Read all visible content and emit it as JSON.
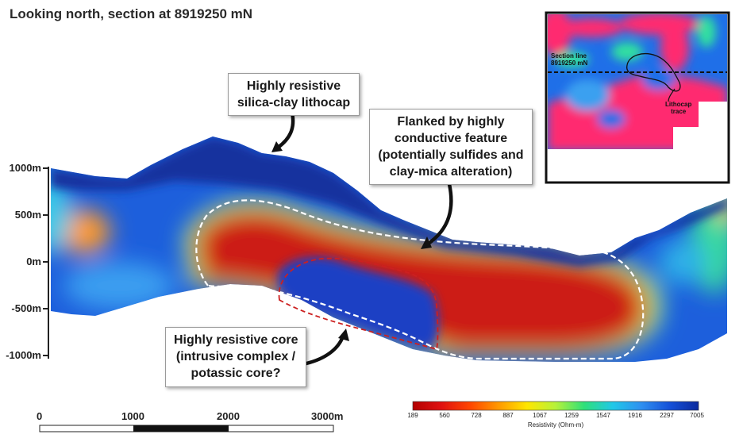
{
  "title": "Looking north, section at 8919250 mN",
  "callouts": {
    "lithocap": [
      "Highly resistive",
      "silica-clay lithocap"
    ],
    "conductive": [
      "Flanked by highly",
      "conductive feature",
      "(potentially sulfides and",
      "clay-mica alteration)"
    ],
    "core": [
      "Highly resistive core",
      "(intrusive complex /",
      "potassic core?"
    ]
  },
  "elevation_axis": {
    "labels": [
      "1000m",
      "500m",
      "0m",
      "-500m",
      "-1000m"
    ]
  },
  "scale_bar": {
    "labels": [
      "0",
      "1000",
      "2000",
      "3000m"
    ]
  },
  "colorbar": {
    "title": "Resistivity (Ohm-m)",
    "ticks": [
      "189",
      "560",
      "728",
      "887",
      "1067",
      "1259",
      "1547",
      "1916",
      "2297",
      "7005"
    ],
    "colors": [
      "#b30000",
      "#e01010",
      "#ff4500",
      "#ff9900",
      "#ffe600",
      "#b6f23a",
      "#2ee07a",
      "#20c8e8",
      "#2f8ff0",
      "#1550d8",
      "#0b2a9e"
    ]
  },
  "inset": {
    "section_line_label": [
      "Section line",
      "8919250 mN"
    ],
    "lithocap_label": [
      "Lithocap",
      "trace"
    ]
  },
  "colors": {
    "resistive": "#1a4fd6",
    "conductive": "#c41a14",
    "dashed_outer": "#ffffff",
    "dashed_inner": "#cc2020"
  }
}
